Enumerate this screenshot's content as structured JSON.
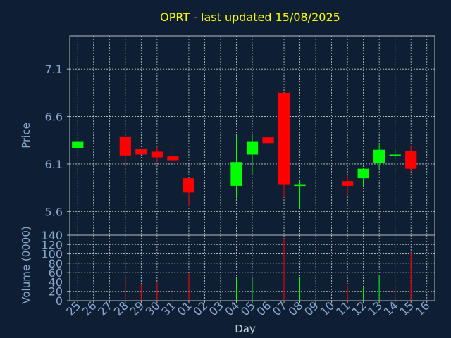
{
  "chart_data": [
    {
      "type": "candlestick",
      "title": "OPRT - last updated 15/08/2025",
      "ylabel": "Price",
      "ylim": [
        5.35,
        7.45
      ],
      "yticks": [
        5.6,
        6.1,
        6.6,
        7.1
      ],
      "ytick_labels": [
        "5.6",
        "6.1",
        "6.6",
        "7.1"
      ],
      "categories": [
        "25",
        "26",
        "27",
        "28",
        "29",
        "30",
        "31",
        "01",
        "02",
        "03",
        "04",
        "05",
        "06",
        "07",
        "08",
        "09",
        "10",
        "11",
        "12",
        "13",
        "14",
        "15",
        "16"
      ],
      "candles": [
        {
          "day": "25",
          "open": 6.27,
          "close": 6.34,
          "high": 6.34,
          "low": 6.27
        },
        {
          "day": "28",
          "open": 6.39,
          "close": 6.19,
          "high": 6.39,
          "low": 6.1
        },
        {
          "day": "29",
          "open": 6.26,
          "close": 6.2,
          "high": 6.26,
          "low": 6.2
        },
        {
          "day": "30",
          "open": 6.23,
          "close": 6.17,
          "high": 6.28,
          "low": 6.12
        },
        {
          "day": "31",
          "open": 6.18,
          "close": 6.14,
          "high": 6.28,
          "low": 6.11
        },
        {
          "day": "01",
          "open": 5.95,
          "close": 5.8,
          "high": 5.95,
          "low": 5.66
        },
        {
          "day": "04",
          "open": 5.87,
          "close": 6.12,
          "high": 6.4,
          "low": 5.74
        },
        {
          "day": "05",
          "open": 6.2,
          "close": 6.34,
          "high": 6.4,
          "low": 5.99
        },
        {
          "day": "06",
          "open": 6.38,
          "close": 6.32,
          "high": 6.57,
          "low": 6.29
        },
        {
          "day": "07",
          "open": 6.85,
          "close": 5.88,
          "high": 6.85,
          "low": 5.75
        },
        {
          "day": "08",
          "open": 5.88,
          "close": 5.88,
          "high": 5.93,
          "low": 5.63
        },
        {
          "day": "11",
          "open": 5.92,
          "close": 5.87,
          "high": 5.98,
          "low": 5.77
        },
        {
          "day": "12",
          "open": 5.95,
          "close": 6.05,
          "high": 6.05,
          "low": 5.87
        },
        {
          "day": "13",
          "open": 6.11,
          "close": 6.25,
          "high": 6.32,
          "low": 6.05
        },
        {
          "day": "14",
          "open": 6.2,
          "close": 6.2,
          "high": 6.25,
          "low": 6.15
        },
        {
          "day": "15",
          "open": 6.24,
          "close": 6.05,
          "high": 6.29,
          "low": 6.02
        }
      ]
    },
    {
      "type": "bar",
      "ylabel": "Volume (0000)",
      "xlabel": "Day",
      "ylim": [
        0,
        140
      ],
      "yticks": [
        0,
        20,
        40,
        60,
        80,
        100,
        120,
        140
      ],
      "ytick_labels": [
        "0",
        "20",
        "40",
        "60",
        "80",
        "100",
        "120",
        "140"
      ],
      "categories": [
        "25",
        "26",
        "27",
        "28",
        "29",
        "30",
        "31",
        "01",
        "02",
        "03",
        "04",
        "05",
        "06",
        "07",
        "08",
        "09",
        "10",
        "11",
        "12",
        "13",
        "14",
        "15",
        "16"
      ],
      "series": [
        {
          "values": [
            0,
            0,
            0,
            50,
            35,
            38,
            28,
            58,
            0,
            0,
            48,
            48,
            78,
            133,
            50,
            0,
            0,
            32,
            30,
            55,
            32,
            103,
            0
          ],
          "colors": [
            "none",
            "none",
            "none",
            "red",
            "red",
            "red",
            "red",
            "red",
            "none",
            "none",
            "green",
            "green",
            "red",
            "red",
            "green",
            "none",
            "none",
            "red",
            "green",
            "green",
            "red",
            "red",
            "none"
          ]
        }
      ]
    }
  ],
  "colors": {
    "background": "#0f1f33",
    "title": "#ffff00",
    "axis_text": "#8aa9d1",
    "axis_line": "#b7bcc4",
    "grid": "#e9eef4",
    "up": "#00ff00",
    "down": "#ff0000"
  }
}
